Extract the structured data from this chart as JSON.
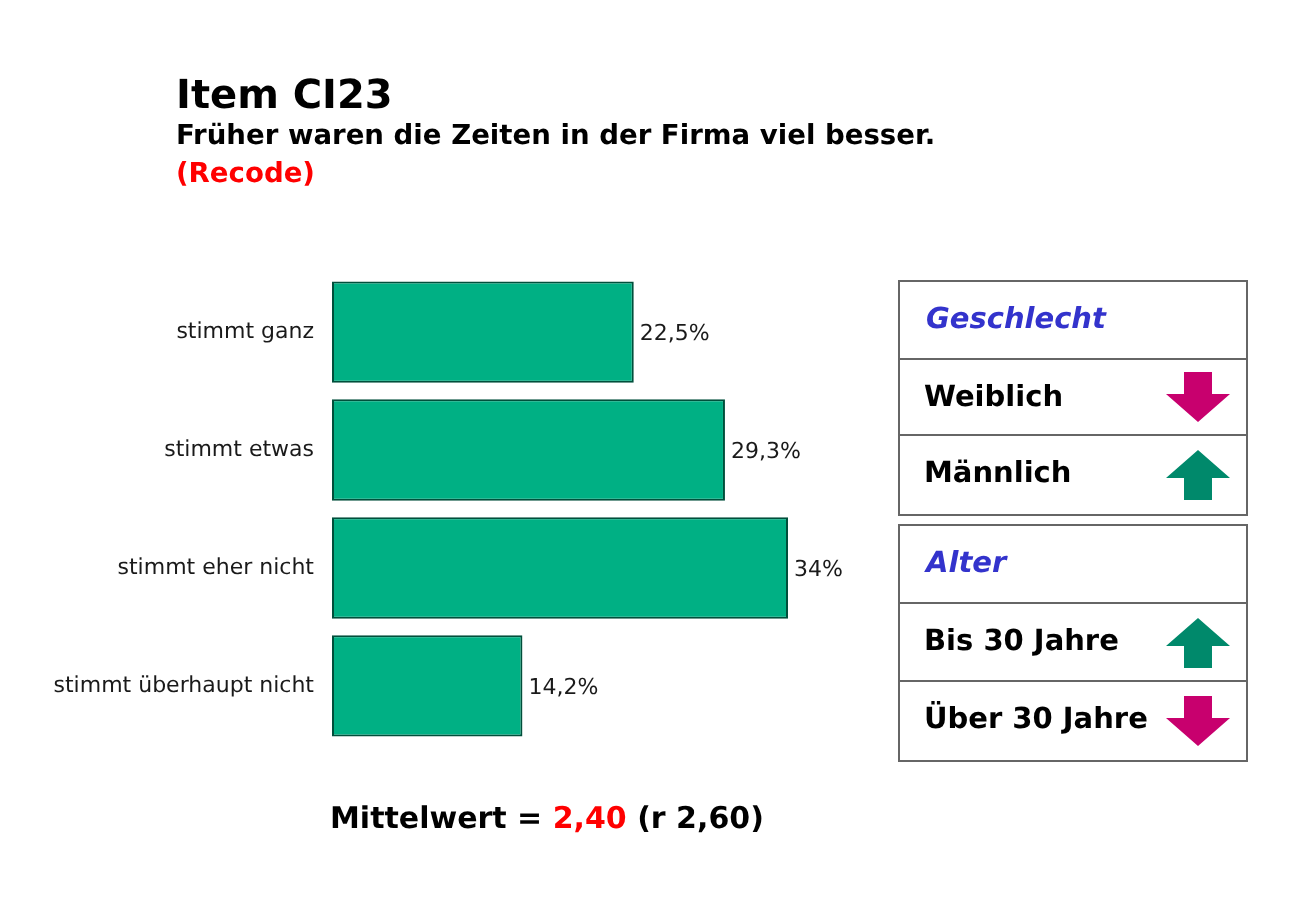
{
  "chart_data": [
    {
      "type": "bar",
      "title": "Item CI23",
      "subtitle": "Früher waren die Zeiten in der Firma viel besser.",
      "annotations": [
        "(Recode)",
        "Mittelwert = 2,40 (r 2,60)"
      ],
      "orientation": "horizontal",
      "categories": [
        "stimmt ganz",
        "stimmt etwas",
        "stimmt eher nicht",
        "stimmt überhaupt nicht"
      ],
      "values": [
        22.5,
        29.3,
        34,
        14.2
      ],
      "color": "#00b084",
      "value_labels": [
        "22,5%",
        "29,3%",
        "34%",
        "14,2%"
      ],
      "tick_labels": "y"
    },
    {
      "type": "other",
      "title": "Geschlecht",
      "annotations": [
        "Weiblich",
        "Männlich"
      ]
    },
    {
      "type": "other",
      "title": "Alter",
      "annotations": [
        "Bis 30 Jahre",
        "Über 30 Jahre"
      ]
    }
  ]
}
